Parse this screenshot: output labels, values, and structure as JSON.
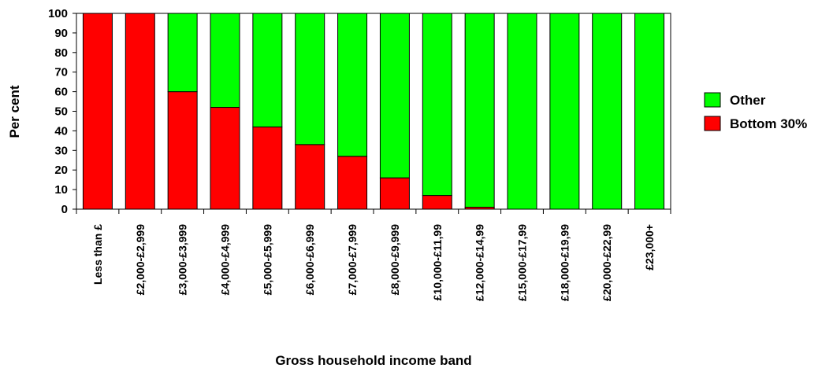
{
  "chart_data": {
    "type": "bar",
    "stacked": true,
    "categories": [
      "Less than £",
      "£2,000-£2,999",
      "£3,000-£3,999",
      "£4,000-£4,999",
      "£5,000-£5,999",
      "£6,000-£6,999",
      "£7,000-£7,999",
      "£8,000-£9,999",
      "£10,000-£11,99",
      "£12,000-£14,99",
      "£15,000-£17,99",
      "£18,000-£19,99",
      "£20,000-£22,99",
      "£23,000+"
    ],
    "series": [
      {
        "name": "Bottom 30%",
        "color": "#ff0000",
        "values": [
          100,
          100,
          60,
          52,
          42,
          33,
          27,
          16,
          7,
          1,
          0,
          0,
          0,
          0
        ]
      },
      {
        "name": "Other",
        "color": "#00ff00",
        "values": [
          0,
          0,
          40,
          48,
          58,
          67,
          73,
          84,
          93,
          99,
          100,
          100,
          100,
          100
        ]
      }
    ],
    "xlabel": "Gross household income band",
    "ylabel": "Per cent",
    "ylim": [
      0,
      100
    ],
    "yticks": [
      0,
      10,
      20,
      30,
      40,
      50,
      60,
      70,
      80,
      90,
      100
    ],
    "grid": false,
    "legend_position": "right",
    "legend_order": [
      "Other",
      "Bottom 30%"
    ]
  }
}
